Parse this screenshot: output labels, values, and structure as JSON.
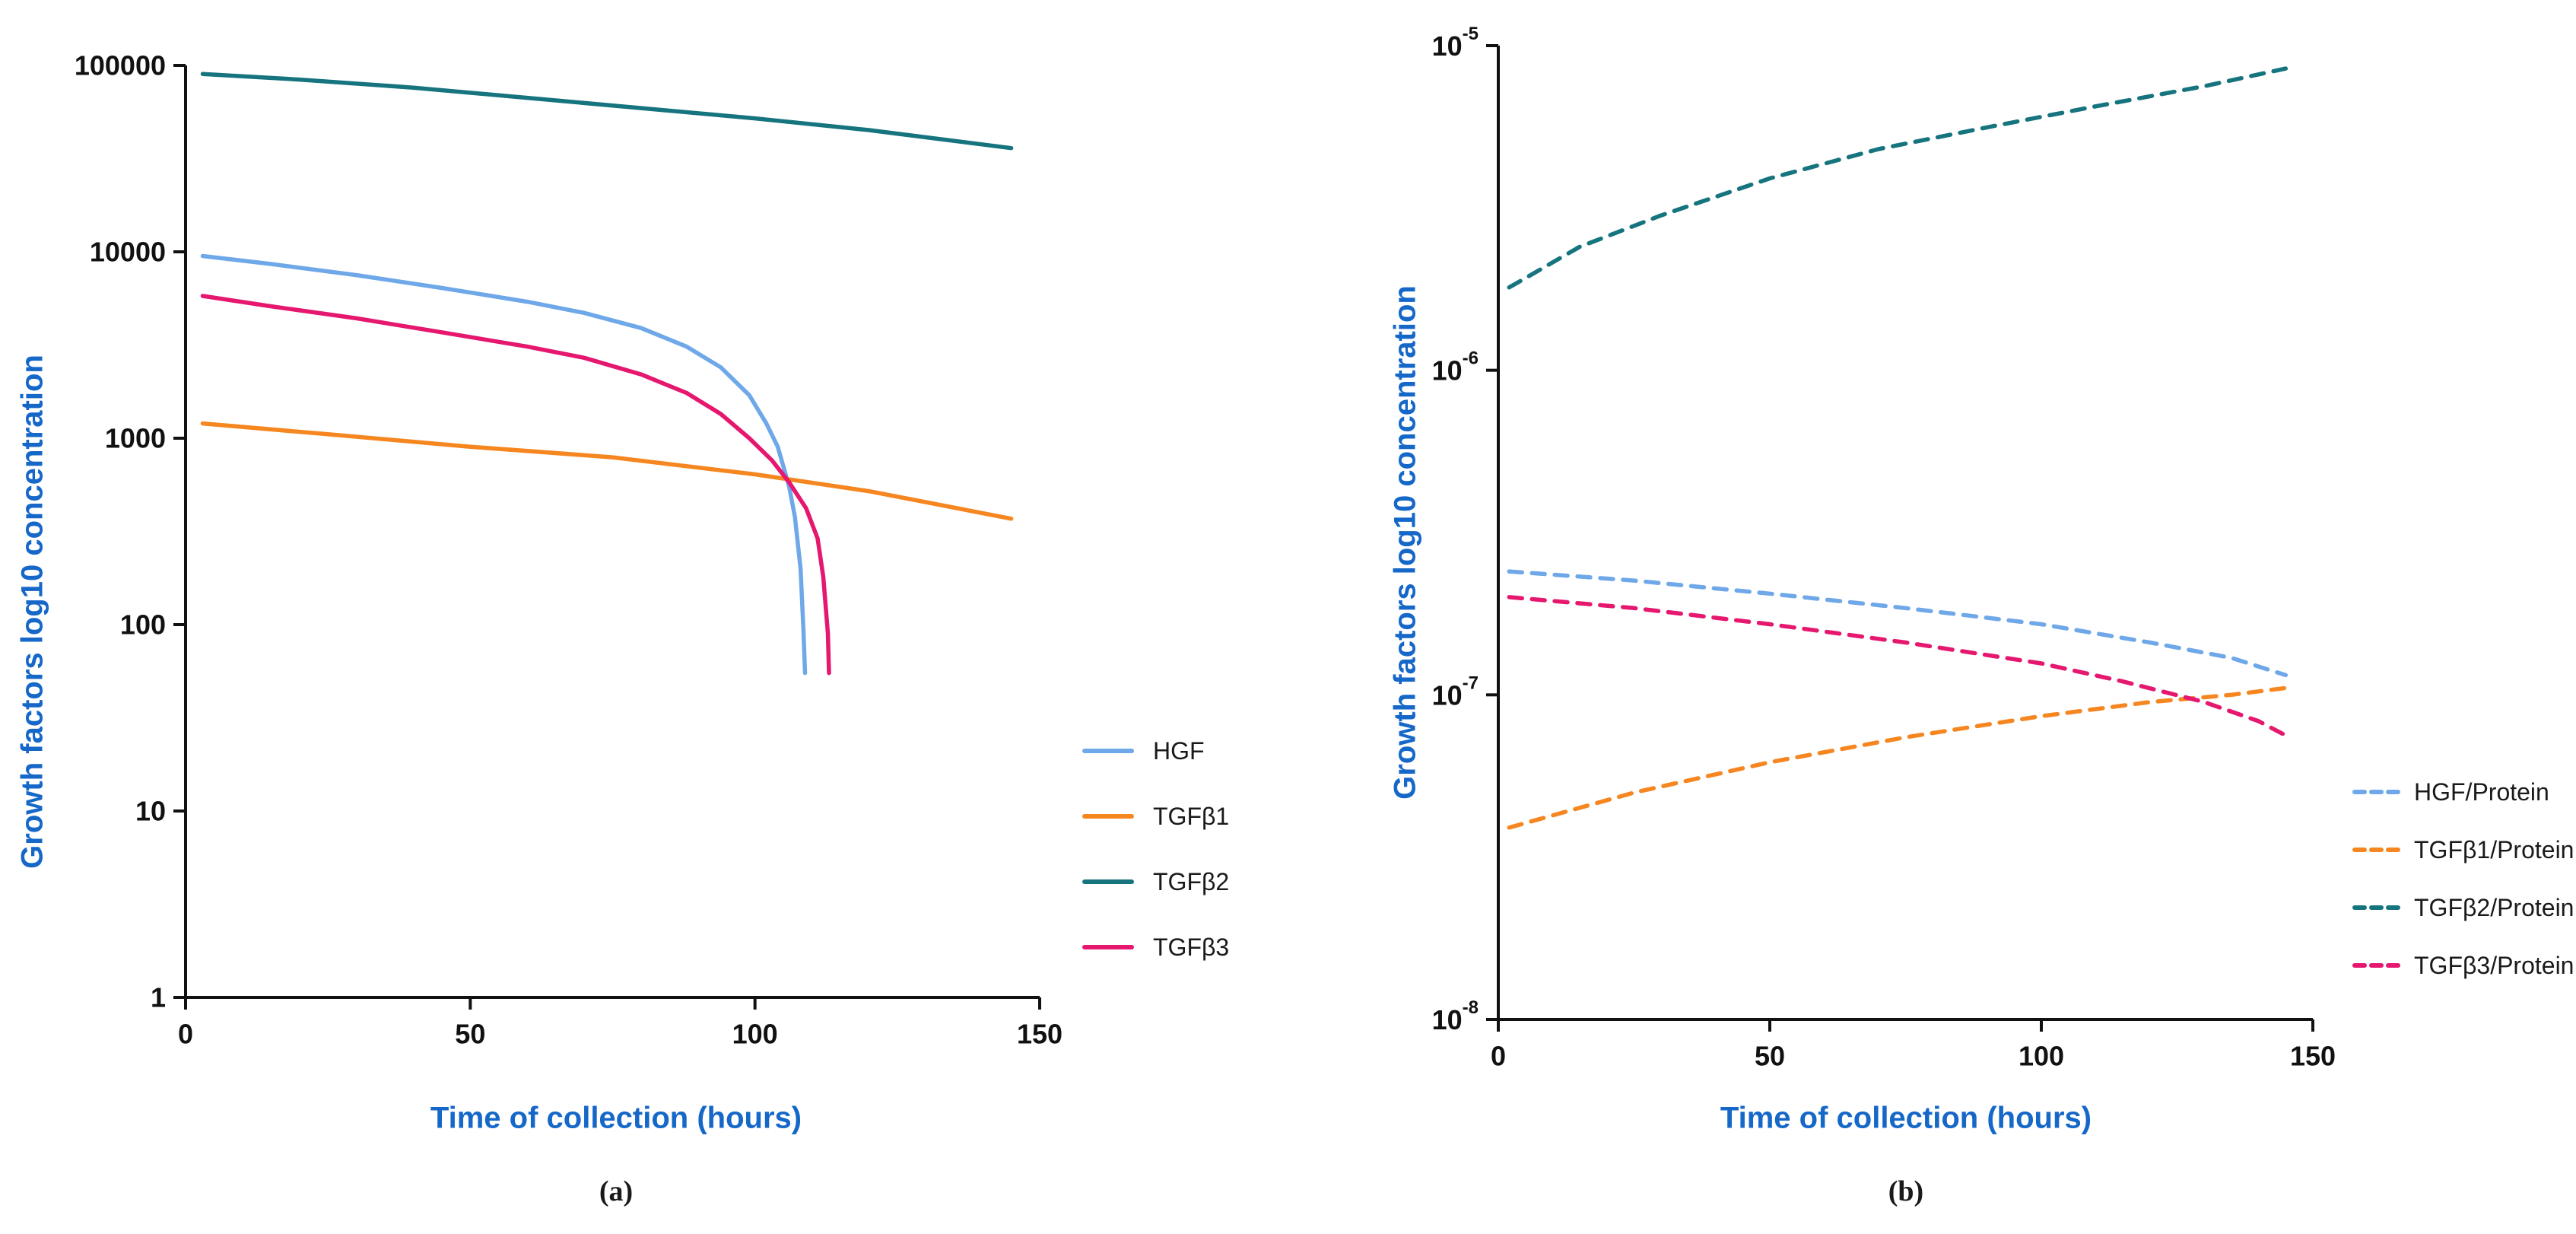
{
  "figure": {
    "panels": [
      {
        "caption": "(a)"
      },
      {
        "caption": "(b)"
      }
    ]
  },
  "colors": {
    "axis_title_blue": "#1567C8",
    "axis_black": "#111111",
    "hgf_blue": "#6FA8E8",
    "tgfb1_orange": "#F6861F",
    "tgfb2_teal": "#16747E",
    "tgfb3_pink": "#E5176E"
  },
  "chart_data": [
    {
      "id": "panel-a",
      "type": "line",
      "title": "",
      "xlabel": "Time of collection (hours)",
      "ylabel": "Growth factors log10 concentration",
      "grid": false,
      "legend_position": "right",
      "x_axis": {
        "min": 0,
        "max": 150,
        "ticks": [
          0,
          50,
          100,
          150
        ]
      },
      "y_axis": {
        "scale": "log10",
        "min": 1,
        "max": 100000,
        "tick_values": [
          1,
          10,
          100,
          1000,
          10000,
          100000
        ],
        "tick_labels": [
          "1",
          "10",
          "100",
          "1000",
          "10000",
          "100000"
        ]
      },
      "series": [
        {
          "name": "HGF",
          "color": "#6FA8E8",
          "dash": "solid",
          "points": [
            [
              3,
              9500
            ],
            [
              15,
              8600
            ],
            [
              30,
              7500
            ],
            [
              45,
              6400
            ],
            [
              60,
              5400
            ],
            [
              70,
              4700
            ],
            [
              80,
              3900
            ],
            [
              88,
              3100
            ],
            [
              94,
              2400
            ],
            [
              99,
              1700
            ],
            [
              102,
              1200
            ],
            [
              104,
              900
            ],
            [
              106,
              550
            ],
            [
              107,
              380
            ],
            [
              108,
              200
            ],
            [
              108.5,
              95
            ],
            [
              108.8,
              55
            ]
          ]
        },
        {
          "name": "TGFβ1",
          "color": "#F6861F",
          "dash": "solid",
          "points": [
            [
              3,
              1200
            ],
            [
              25,
              1050
            ],
            [
              50,
              900
            ],
            [
              75,
              790
            ],
            [
              100,
              640
            ],
            [
              120,
              520
            ],
            [
              145,
              370
            ]
          ]
        },
        {
          "name": "TGFβ2",
          "color": "#16747E",
          "dash": "solid",
          "points": [
            [
              3,
              90000
            ],
            [
              20,
              84000
            ],
            [
              40,
              76000
            ],
            [
              60,
              67000
            ],
            [
              80,
              59000
            ],
            [
              100,
              52000
            ],
            [
              120,
              45000
            ],
            [
              145,
              36000
            ]
          ]
        },
        {
          "name": "TGFβ3",
          "color": "#E5176E",
          "dash": "solid",
          "points": [
            [
              3,
              5800
            ],
            [
              15,
              5100
            ],
            [
              30,
              4400
            ],
            [
              45,
              3700
            ],
            [
              60,
              3100
            ],
            [
              70,
              2700
            ],
            [
              80,
              2200
            ],
            [
              88,
              1750
            ],
            [
              94,
              1350
            ],
            [
              99,
              1000
            ],
            [
              103,
              760
            ],
            [
              106,
              580
            ],
            [
              109,
              420
            ],
            [
              111,
              290
            ],
            [
              112,
              180
            ],
            [
              112.8,
              90
            ],
            [
              113,
              55
            ]
          ]
        }
      ]
    },
    {
      "id": "panel-b",
      "type": "line",
      "title": "",
      "xlabel": "Time of collection (hours)",
      "ylabel": "Growth factors log10 concentration",
      "grid": false,
      "legend_position": "right",
      "x_axis": {
        "min": 0,
        "max": 150,
        "ticks": [
          0,
          50,
          100,
          150
        ]
      },
      "y_axis": {
        "scale": "log10",
        "min": 1e-08,
        "max": 1e-05,
        "tick_values": [
          1e-08,
          1e-07,
          1e-06,
          1e-05
        ],
        "tick_labels": [
          "10^-8",
          "10^-7",
          "10^-6",
          "10^-5"
        ]
      },
      "series": [
        {
          "name": "HGF/Protein",
          "color": "#6FA8E8",
          "dash": "dashed",
          "points": [
            [
              2,
              2.4e-07
            ],
            [
              25,
              2.25e-07
            ],
            [
              50,
              2.05e-07
            ],
            [
              75,
              1.85e-07
            ],
            [
              100,
              1.65e-07
            ],
            [
              120,
              1.45e-07
            ],
            [
              135,
              1.3e-07
            ],
            [
              145,
              1.15e-07
            ]
          ]
        },
        {
          "name": "TGFβ1/Protein",
          "color": "#F6861F",
          "dash": "dashed",
          "points": [
            [
              2,
              3.9e-08
            ],
            [
              25,
              5e-08
            ],
            [
              50,
              6.2e-08
            ],
            [
              75,
              7.4e-08
            ],
            [
              100,
              8.6e-08
            ],
            [
              120,
              9.5e-08
            ],
            [
              135,
              1e-07
            ],
            [
              145,
              1.05e-07
            ]
          ]
        },
        {
          "name": "TGFβ2/Protein",
          "color": "#16747E",
          "dash": "dashed",
          "points": [
            [
              2,
              1.8e-06
            ],
            [
              15,
              2.4e-06
            ],
            [
              30,
              3e-06
            ],
            [
              50,
              3.9e-06
            ],
            [
              70,
              4.8e-06
            ],
            [
              90,
              5.6e-06
            ],
            [
              110,
              6.5e-06
            ],
            [
              130,
              7.5e-06
            ],
            [
              145,
              8.5e-06
            ]
          ]
        },
        {
          "name": "TGFβ3/Protein",
          "color": "#E5176E",
          "dash": "dashed",
          "points": [
            [
              2,
              2e-07
            ],
            [
              25,
              1.85e-07
            ],
            [
              50,
              1.65e-07
            ],
            [
              75,
              1.45e-07
            ],
            [
              100,
              1.25e-07
            ],
            [
              115,
              1.1e-07
            ],
            [
              130,
              9.5e-08
            ],
            [
              140,
              8.3e-08
            ],
            [
              145,
              7.5e-08
            ]
          ]
        }
      ]
    }
  ]
}
